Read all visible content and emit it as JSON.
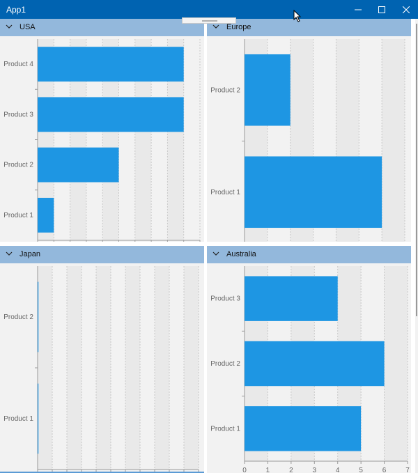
{
  "window": {
    "title": "App1"
  },
  "colors": {
    "titlebar": "#0063b1",
    "header": "#93b8dc",
    "bar": "#1e96e3",
    "bandDark": "#e9e9e9",
    "bandLight": "#f2f2f2"
  },
  "panels": [
    {
      "title": "USA",
      "chart_data": {
        "type": "bar",
        "orientation": "horizontal",
        "categories": [
          "Product 1",
          "Product 2",
          "Product 3",
          "Product 4"
        ],
        "values": [
          1,
          5,
          9,
          9
        ],
        "xlim": [
          0,
          10
        ],
        "xticks": [
          "0",
          "1",
          "2",
          "3",
          "4",
          "5",
          "6",
          "7",
          "8",
          "9",
          "10"
        ]
      }
    },
    {
      "title": "Europe",
      "chart_data": {
        "type": "bar",
        "orientation": "horizontal",
        "categories": [
          "Product 1",
          "Product 2"
        ],
        "values": [
          3,
          1
        ],
        "xlim": [
          0,
          3.5
        ],
        "xticks": [
          "0",
          "0.5",
          "1",
          "1.5",
          "2",
          "2.5",
          "3",
          "3.5"
        ]
      }
    },
    {
      "title": "Japan",
      "chart_data": {
        "type": "bar",
        "orientation": "horizontal",
        "categories": [
          "Product 1",
          "Product 2"
        ],
        "values": [
          0,
          0
        ],
        "xlim": [
          0,
          1.1
        ],
        "xticks": [
          "0",
          "0.1",
          "0.2",
          "0.3",
          "0.4",
          "0.5",
          "0.6",
          "0.7",
          "0.8",
          "0.9",
          "1",
          "1.1"
        ]
      }
    },
    {
      "title": "Australia",
      "chart_data": {
        "type": "bar",
        "orientation": "horizontal",
        "categories": [
          "Product 1",
          "Product 2",
          "Product 3"
        ],
        "values": [
          5,
          6,
          4
        ],
        "xlim": [
          0,
          7
        ],
        "xticks": [
          "0",
          "1",
          "2",
          "3",
          "4",
          "5",
          "6",
          "7"
        ]
      }
    }
  ]
}
